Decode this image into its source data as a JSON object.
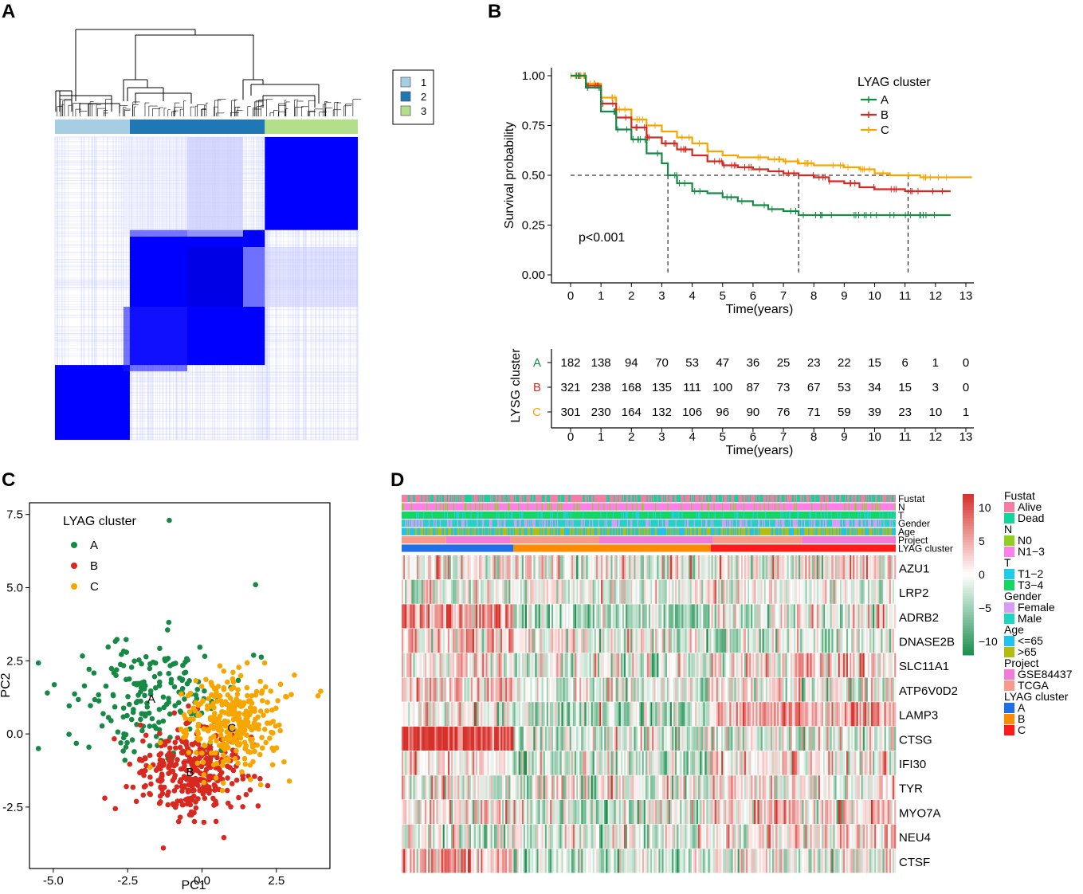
{
  "panels": {
    "a": "A",
    "b": "B",
    "c": "C",
    "d": "D"
  },
  "colors": {
    "cons1": "#a6cee3",
    "cons2": "#1f78b4",
    "cons3": "#b2df8a",
    "consensus": "#0000ff",
    "cluster_a": "#168a45",
    "cluster_b": "#d7291f",
    "cluster_c": "#f7a600",
    "heat_low": "#1a8f4e",
    "heat_mid": "#ffffff",
    "heat_high": "#d7302a",
    "alive": "#f47ea3",
    "dead": "#11d69b",
    "n0": "#8ecf21",
    "n13": "#ff7fe8",
    "t12": "#20cde6",
    "t34": "#13d663",
    "female": "#d89cf2",
    "male": "#1fd4c3",
    "age_le65": "#21c3ee",
    "age_gt65": "#b2bd0e",
    "gse": "#f07cd8",
    "tcga": "#f79a8a",
    "lyag_a": "#1f6fe6",
    "lyag_b": "#ff8c00",
    "lyag_c": "#ff1a1a"
  },
  "consensus_legend": [
    "1",
    "2",
    "3"
  ],
  "chart_data": [
    {
      "id": "consensus",
      "type": "heatmap",
      "title": "",
      "clusters": [
        "1",
        "2",
        "3"
      ],
      "ordered_clusters": [
        "1",
        "2",
        "3"
      ],
      "cluster_sizes": [
        301,
        543,
        374
      ],
      "block_matrix_order": [
        "3",
        "2",
        "1"
      ],
      "note": "consensus matrix; rows top-to-bottom cluster 3, 2, 1; columns left-to-right cluster 1, 2, 3"
    },
    {
      "id": "survival",
      "type": "line",
      "title": "",
      "xlabel": "Time(years)",
      "ylabel": "Survival probability",
      "xlim": [
        0,
        13
      ],
      "ylim": [
        0,
        1
      ],
      "x_ticks": [
        "0",
        "1",
        "2",
        "3",
        "4",
        "5",
        "6",
        "7",
        "8",
        "9",
        "10",
        "11",
        "12",
        "13"
      ],
      "y_ticks": [
        "0.00",
        "0.25",
        "0.50",
        "0.75",
        "1.00"
      ],
      "legend_title": "LYAG cluster",
      "annotation": "p<0.001",
      "median_survival": [
        3.2,
        7.5,
        11.1
      ],
      "median_line_y": 0.5,
      "series": [
        {
          "name": "A",
          "color_key": "cluster_a",
          "x": [
            0,
            0.5,
            1,
            1.5,
            2,
            2.5,
            3,
            3.2,
            3.5,
            4,
            4.5,
            5,
            5.5,
            6,
            6.5,
            7,
            7.5,
            8,
            9,
            10,
            11,
            12,
            12.5
          ],
          "y": [
            1.0,
            0.94,
            0.82,
            0.73,
            0.68,
            0.61,
            0.56,
            0.5,
            0.46,
            0.42,
            0.41,
            0.39,
            0.37,
            0.35,
            0.33,
            0.32,
            0.3,
            0.3,
            0.3,
            0.3,
            0.3,
            0.3,
            0.3
          ]
        },
        {
          "name": "B",
          "color_key": "cluster_b",
          "x": [
            0,
            0.5,
            1,
            1.5,
            2,
            2.5,
            3,
            3.5,
            4,
            4.5,
            5,
            5.5,
            6,
            6.5,
            7,
            7.5,
            8,
            8.5,
            9,
            9.5,
            10,
            10.5,
            11,
            11.5,
            12,
            12.5
          ],
          "y": [
            1.0,
            0.95,
            0.86,
            0.79,
            0.74,
            0.69,
            0.66,
            0.63,
            0.6,
            0.57,
            0.55,
            0.54,
            0.53,
            0.52,
            0.51,
            0.5,
            0.49,
            0.47,
            0.46,
            0.44,
            0.43,
            0.43,
            0.42,
            0.42,
            0.42,
            0.42
          ]
        },
        {
          "name": "C",
          "color_key": "cluster_c",
          "x": [
            0,
            0.5,
            1,
            1.5,
            2,
            2.5,
            3,
            3.5,
            4,
            4.5,
            5,
            5.5,
            6,
            6.5,
            7,
            7.5,
            8,
            8.5,
            9,
            9.5,
            10,
            10.5,
            11,
            11.5,
            12,
            12.5,
            13.2
          ],
          "y": [
            1.0,
            0.96,
            0.89,
            0.83,
            0.78,
            0.75,
            0.72,
            0.69,
            0.66,
            0.62,
            0.6,
            0.59,
            0.59,
            0.58,
            0.57,
            0.56,
            0.55,
            0.55,
            0.54,
            0.53,
            0.51,
            0.5,
            0.5,
            0.49,
            0.49,
            0.49,
            0.49
          ]
        }
      ]
    },
    {
      "id": "risk_table",
      "type": "table",
      "xlabel": "Time(years)",
      "ylabel": "LYSG cluster",
      "x_ticks": [
        "0",
        "1",
        "2",
        "3",
        "4",
        "5",
        "6",
        "7",
        "8",
        "9",
        "10",
        "11",
        "12",
        "13"
      ],
      "rows": [
        {
          "name": "A",
          "color_key": "cluster_a",
          "values": [
            182,
            138,
            94,
            70,
            53,
            47,
            36,
            25,
            23,
            22,
            15,
            6,
            1,
            0
          ]
        },
        {
          "name": "B",
          "color_key": "cluster_b",
          "values": [
            321,
            238,
            168,
            135,
            111,
            100,
            87,
            73,
            67,
            53,
            34,
            15,
            3,
            0
          ]
        },
        {
          "name": "C",
          "color_key": "cluster_c",
          "values": [
            301,
            230,
            164,
            132,
            106,
            96,
            90,
            76,
            71,
            59,
            39,
            23,
            10,
            1
          ]
        }
      ]
    },
    {
      "id": "pca",
      "type": "scatter",
      "xlabel": "PC1",
      "ylabel": "PC2",
      "xlim": [
        -5.8,
        4.3
      ],
      "ylim": [
        -4.6,
        7.9
      ],
      "x_ticks": [
        -5.0,
        -2.5,
        0.0,
        2.5
      ],
      "y_ticks": [
        -2.5,
        0.0,
        2.5,
        5.0,
        7.5
      ],
      "x_tick_labels": [
        "-5.0",
        "-2.5",
        "0.0",
        "2.5"
      ],
      "y_tick_labels": [
        "-2.5",
        "0.0",
        "2.5",
        "5.0",
        "7.5"
      ],
      "legend_title": "LYAG cluster",
      "series": [
        {
          "name": "A",
          "label": "A",
          "color_key": "cluster_a",
          "n": 182,
          "center": [
            -1.7,
            1.2
          ],
          "spread": [
            1.35,
            1.15
          ],
          "label_pos": [
            -1.7,
            1.2
          ]
        },
        {
          "name": "B",
          "label": "B",
          "color_key": "cluster_b",
          "n": 321,
          "center": [
            -0.4,
            -1.3
          ],
          "spread": [
            1.0,
            0.95
          ],
          "label_pos": [
            -0.4,
            -1.3
          ]
        },
        {
          "name": "C",
          "label": "C",
          "color_key": "cluster_c",
          "n": 301,
          "center": [
            1.0,
            0.4
          ],
          "spread": [
            1.0,
            1.0
          ],
          "label_pos": [
            1.0,
            0.2
          ]
        }
      ],
      "outliers": [
        {
          "x": -1.1,
          "y": 7.3,
          "color_key": "cluster_a"
        },
        {
          "x": 1.8,
          "y": 5.1,
          "color_key": "cluster_a"
        },
        {
          "x": -5.5,
          "y": -0.5,
          "color_key": "cluster_a"
        },
        {
          "x": -5.2,
          "y": 1.4,
          "color_key": "cluster_a"
        },
        {
          "x": -1.3,
          "y": -3.9,
          "color_key": "cluster_b"
        },
        {
          "x": 3.9,
          "y": 1.3,
          "color_key": "cluster_c"
        }
      ]
    },
    {
      "id": "expression_heatmap",
      "type": "heatmap",
      "genes": [
        "AZU1",
        "LRP2",
        "ADRB2",
        "DNASE2B",
        "SLC11A1",
        "ATP6V0D2",
        "LAMP3",
        "CTSG",
        "IFI30",
        "TYR",
        "MYO7A",
        "NEU4",
        "CTSF"
      ],
      "annotation_rows": [
        "Fustat",
        "N",
        "T",
        "Gender",
        "Age",
        "Project",
        "LYAG cluster"
      ],
      "groups": [
        "A",
        "B",
        "C"
      ],
      "group_sizes": [
        182,
        321,
        301
      ],
      "gene_group_means": [
        [
          0.3,
          -0.1,
          0.2
        ],
        [
          -0.2,
          0.0,
          -0.1
        ],
        [
          1.2,
          -0.8,
          -0.3
        ],
        [
          0.6,
          -0.1,
          -0.3
        ],
        [
          0.3,
          -0.2,
          0.4
        ],
        [
          0.4,
          -0.3,
          0.0
        ],
        [
          0.0,
          -0.7,
          1.1
        ],
        [
          2.5,
          -0.3,
          -0.3
        ],
        [
          0.2,
          -0.4,
          0.4
        ],
        [
          0.0,
          -0.2,
          0.1
        ],
        [
          0.1,
          -0.4,
          0.4
        ],
        [
          -0.3,
          -0.3,
          0.3
        ],
        [
          1.0,
          -0.6,
          -0.1
        ]
      ],
      "colorbar": {
        "min": -12,
        "max": 12,
        "ticks": [
          10,
          5,
          0,
          -5,
          -10
        ],
        "tick_labels": [
          "10",
          "5",
          "0",
          "−5",
          "−10"
        ]
      },
      "legends": [
        {
          "title": "Fustat",
          "items": [
            {
              "label": "Alive",
              "color_key": "alive"
            },
            {
              "label": "Dead",
              "color_key": "dead"
            }
          ]
        },
        {
          "title": "N",
          "items": [
            {
              "label": "N0",
              "color_key": "n0"
            },
            {
              "label": "N1−3",
              "color_key": "n13"
            }
          ]
        },
        {
          "title": "T",
          "items": [
            {
              "label": "T1−2",
              "color_key": "t12"
            },
            {
              "label": "T3−4",
              "color_key": "t34"
            }
          ]
        },
        {
          "title": "Gender",
          "items": [
            {
              "label": "Female",
              "color_key": "female"
            },
            {
              "label": "Male",
              "color_key": "male"
            }
          ]
        },
        {
          "title": "Age",
          "items": [
            {
              "label": "<=65",
              "color_key": "age_le65"
            },
            {
              "label": ">65",
              "color_key": "age_gt65"
            }
          ]
        },
        {
          "title": "Project",
          "items": [
            {
              "label": "GSE84437",
              "color_key": "gse"
            },
            {
              "label": "TCGA",
              "color_key": "tcga"
            }
          ]
        },
        {
          "title": "LYAG cluster",
          "items": [
            {
              "label": "A",
              "color_key": "lyag_a"
            },
            {
              "label": "B",
              "color_key": "lyag_b"
            },
            {
              "label": "C",
              "color_key": "lyag_c"
            }
          ]
        }
      ]
    }
  ]
}
